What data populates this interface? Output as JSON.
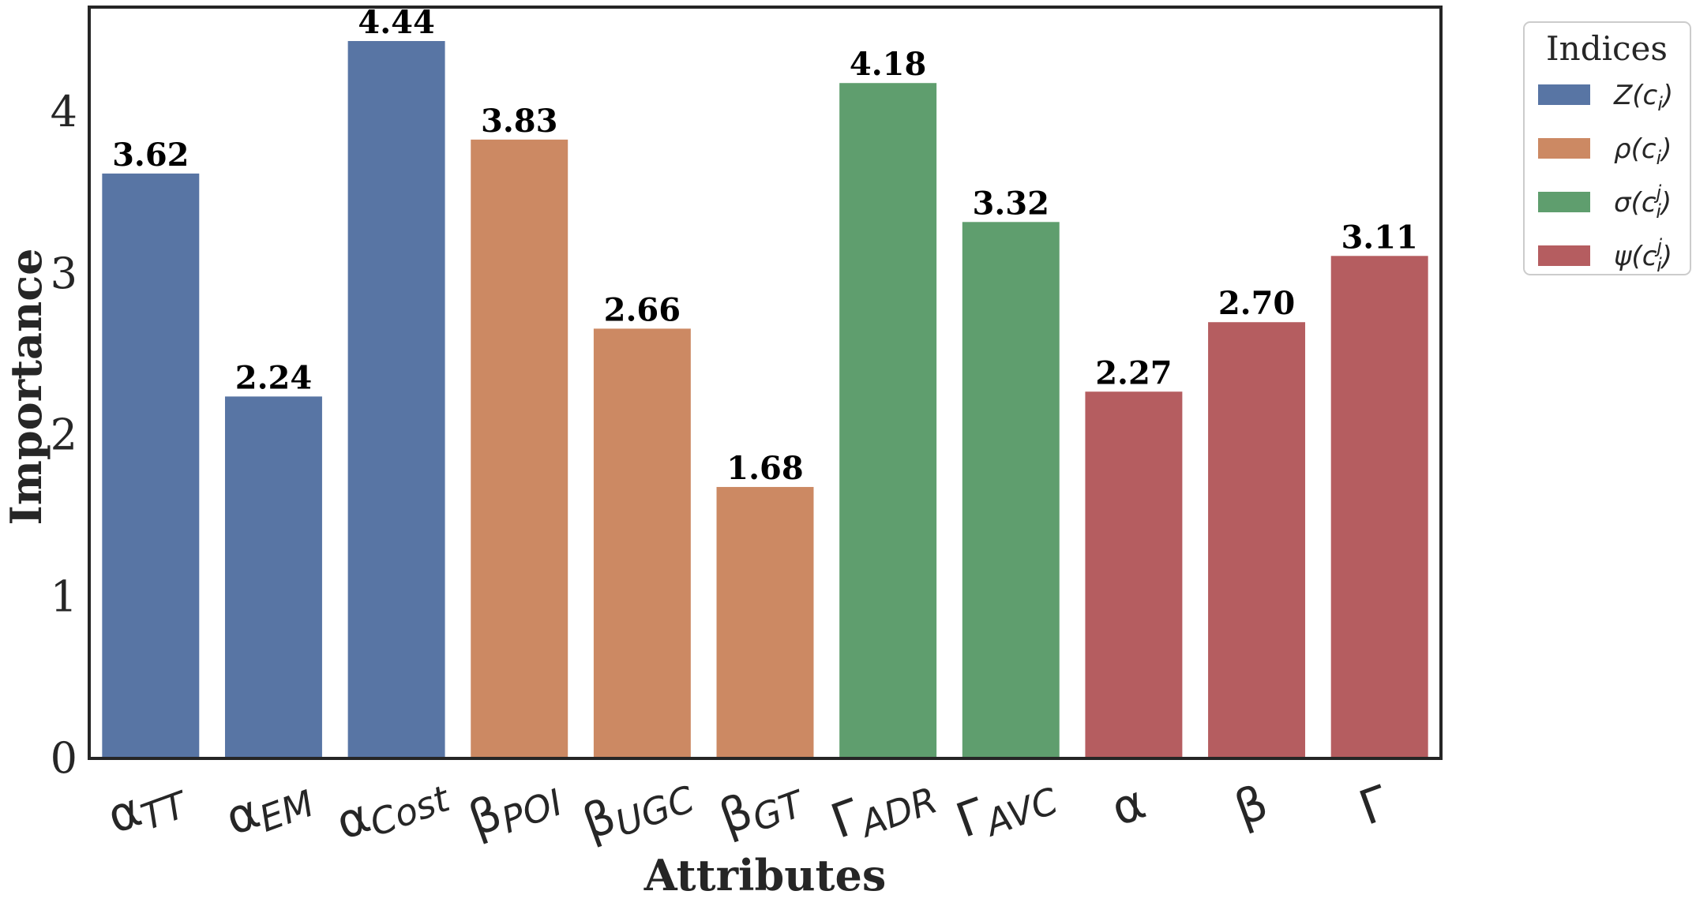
{
  "chart_data": {
    "type": "bar",
    "title": "",
    "xlabel": "Attributes",
    "ylabel": "Importance",
    "ylim": [
      0,
      4.65
    ],
    "yticks": [
      "0",
      "1",
      "2",
      "3",
      "4"
    ],
    "grid": false,
    "legend_position": "outside-top-right",
    "categories": [
      {
        "base": "α",
        "sub": "TT"
      },
      {
        "base": "α",
        "sub": "EM"
      },
      {
        "base": "α",
        "sub": "Cost"
      },
      {
        "base": "β",
        "sub": "POI"
      },
      {
        "base": "β",
        "sub": "UGC"
      },
      {
        "base": "β",
        "sub": "GT"
      },
      {
        "base": "Γ",
        "sub": "ADR"
      },
      {
        "base": "Γ",
        "sub": "AVC"
      },
      {
        "base": "α",
        "sub": ""
      },
      {
        "base": "β",
        "sub": ""
      },
      {
        "base": "Γ",
        "sub": ""
      }
    ],
    "values": [
      3.62,
      2.24,
      4.44,
      3.83,
      2.66,
      1.68,
      4.18,
      3.32,
      2.27,
      2.7,
      3.11
    ],
    "value_labels": [
      "3.62",
      "2.24",
      "4.44",
      "3.83",
      "2.66",
      "1.68",
      "4.18",
      "3.32",
      "2.27",
      "2.70",
      "3.11"
    ],
    "bar_series": [
      0,
      0,
      0,
      1,
      1,
      1,
      2,
      2,
      3,
      3,
      3
    ],
    "legend": {
      "title": "Indices",
      "entries": [
        {
          "label": "Z(c_i)",
          "main": "Z(c",
          "sub": "i",
          "sup": "",
          "close": ")",
          "color": "#5875a4"
        },
        {
          "label": "ρ(c_i)",
          "main": "ρ(c",
          "sub": "i",
          "sup": "",
          "close": ")",
          "color": "#cc8963"
        },
        {
          "label": "σ(c_i^j)",
          "main": "σ(c",
          "sub": "i",
          "sup": "j",
          "close": ")",
          "color": "#5f9e6e"
        },
        {
          "label": "ψ(c_i^j)",
          "main": "ψ(c",
          "sub": "i",
          "sup": "j",
          "close": ")",
          "color": "#b55d60"
        }
      ]
    }
  }
}
